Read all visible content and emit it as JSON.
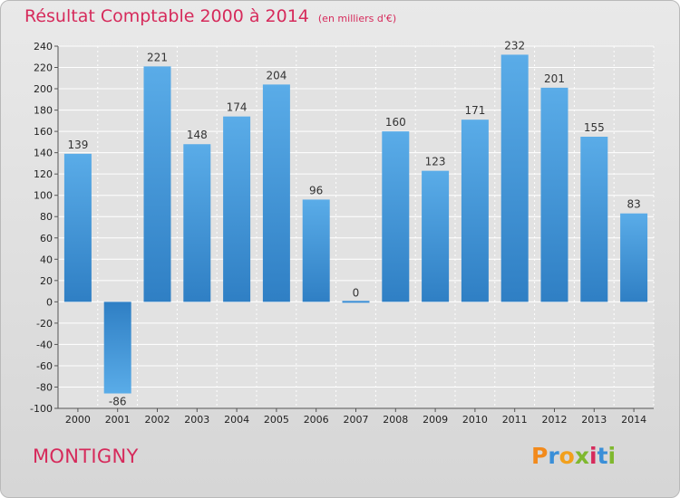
{
  "title": "Résultat Comptable 2000 à 2014",
  "subtitle": "(en milliers d'€)",
  "commune": "MONTIGNY",
  "logo": {
    "letters": [
      "P",
      "r",
      "o",
      "x",
      "i",
      "t",
      "i"
    ],
    "colors": [
      "#f28a1c",
      "#3a8fd8",
      "#f2a01c",
      "#7fb82e",
      "#d62a5b",
      "#3a8fd8",
      "#7fb82e"
    ]
  },
  "colors": {
    "title": "#d62a5b",
    "bar_top": "#5aace8",
    "bar_bottom": "#2f7fc4",
    "background": "#e3e3e3"
  },
  "chart_data": {
    "type": "bar",
    "categories": [
      "2000",
      "2001",
      "2002",
      "2003",
      "2004",
      "2005",
      "2006",
      "2007",
      "2008",
      "2009",
      "2010",
      "2011",
      "2012",
      "2013",
      "2014"
    ],
    "values": [
      139,
      -86,
      221,
      148,
      174,
      204,
      96,
      0,
      160,
      123,
      171,
      232,
      201,
      155,
      83
    ],
    "ylim": [
      -100,
      240
    ],
    "yticks": [
      -100,
      -80,
      -60,
      -40,
      -20,
      0,
      20,
      40,
      60,
      80,
      100,
      120,
      140,
      160,
      180,
      200,
      220,
      240
    ],
    "grid": true
  }
}
